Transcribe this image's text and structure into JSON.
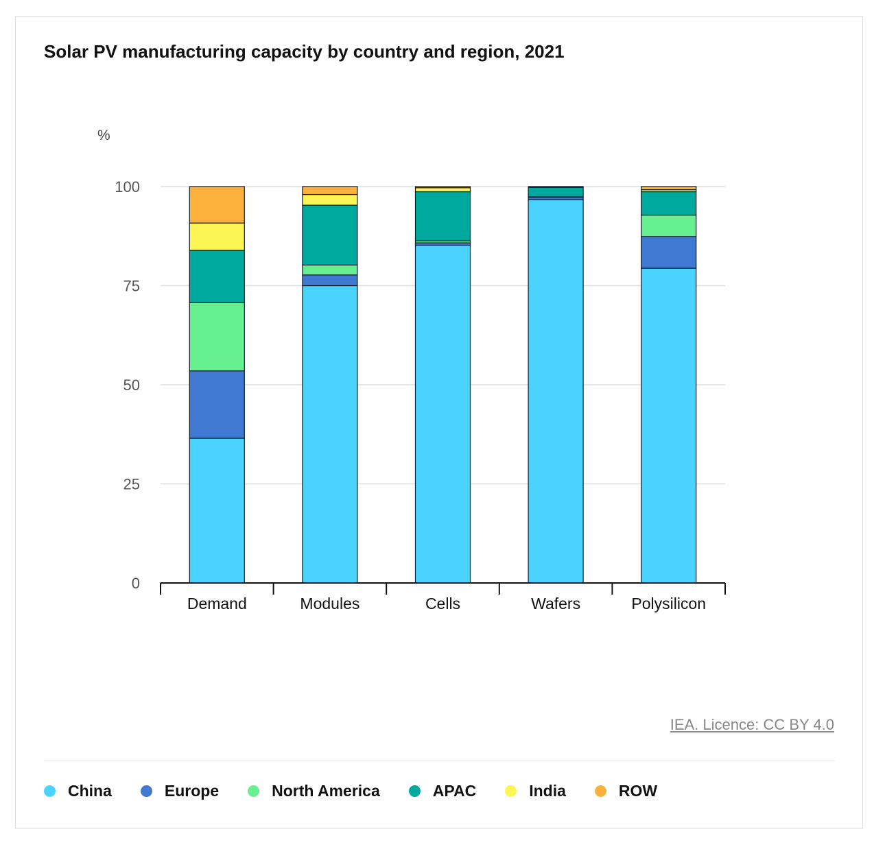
{
  "title": "Solar PV manufacturing capacity by country and region, 2021",
  "source": "IEA. Licence: CC BY 4.0",
  "chart_data": {
    "type": "bar",
    "stacked": true,
    "title": "Solar PV manufacturing capacity by country and region, 2021",
    "ylabel": "%",
    "xlabel": "",
    "ylim": [
      0,
      100
    ],
    "yticks": [
      0,
      25,
      50,
      75,
      100
    ],
    "grid": true,
    "legend_position": "bottom",
    "categories": [
      "Demand",
      "Modules",
      "Cells",
      "Wafers",
      "Polysilicon"
    ],
    "series": [
      {
        "name": "China",
        "color": "#4bd3ff",
        "values": [
          36.5,
          75,
          85.2,
          96.7,
          79.4
        ]
      },
      {
        "name": "Europe",
        "color": "#3f79d2",
        "values": [
          17,
          2.7,
          0.6,
          0.6,
          8
        ]
      },
      {
        "name": "North America",
        "color": "#67f08f",
        "values": [
          17.2,
          2.5,
          0.5,
          0.1,
          5.4
        ]
      },
      {
        "name": "APAC",
        "color": "#00a99d",
        "values": [
          13.2,
          15.1,
          12.4,
          2.4,
          5.9
        ]
      },
      {
        "name": "India",
        "color": "#fdf456",
        "values": [
          6.9,
          2.7,
          1,
          0.1,
          0.5
        ]
      },
      {
        "name": "ROW",
        "color": "#fbb13c",
        "values": [
          9.2,
          2,
          0.3,
          0.1,
          0.8
        ]
      }
    ]
  }
}
